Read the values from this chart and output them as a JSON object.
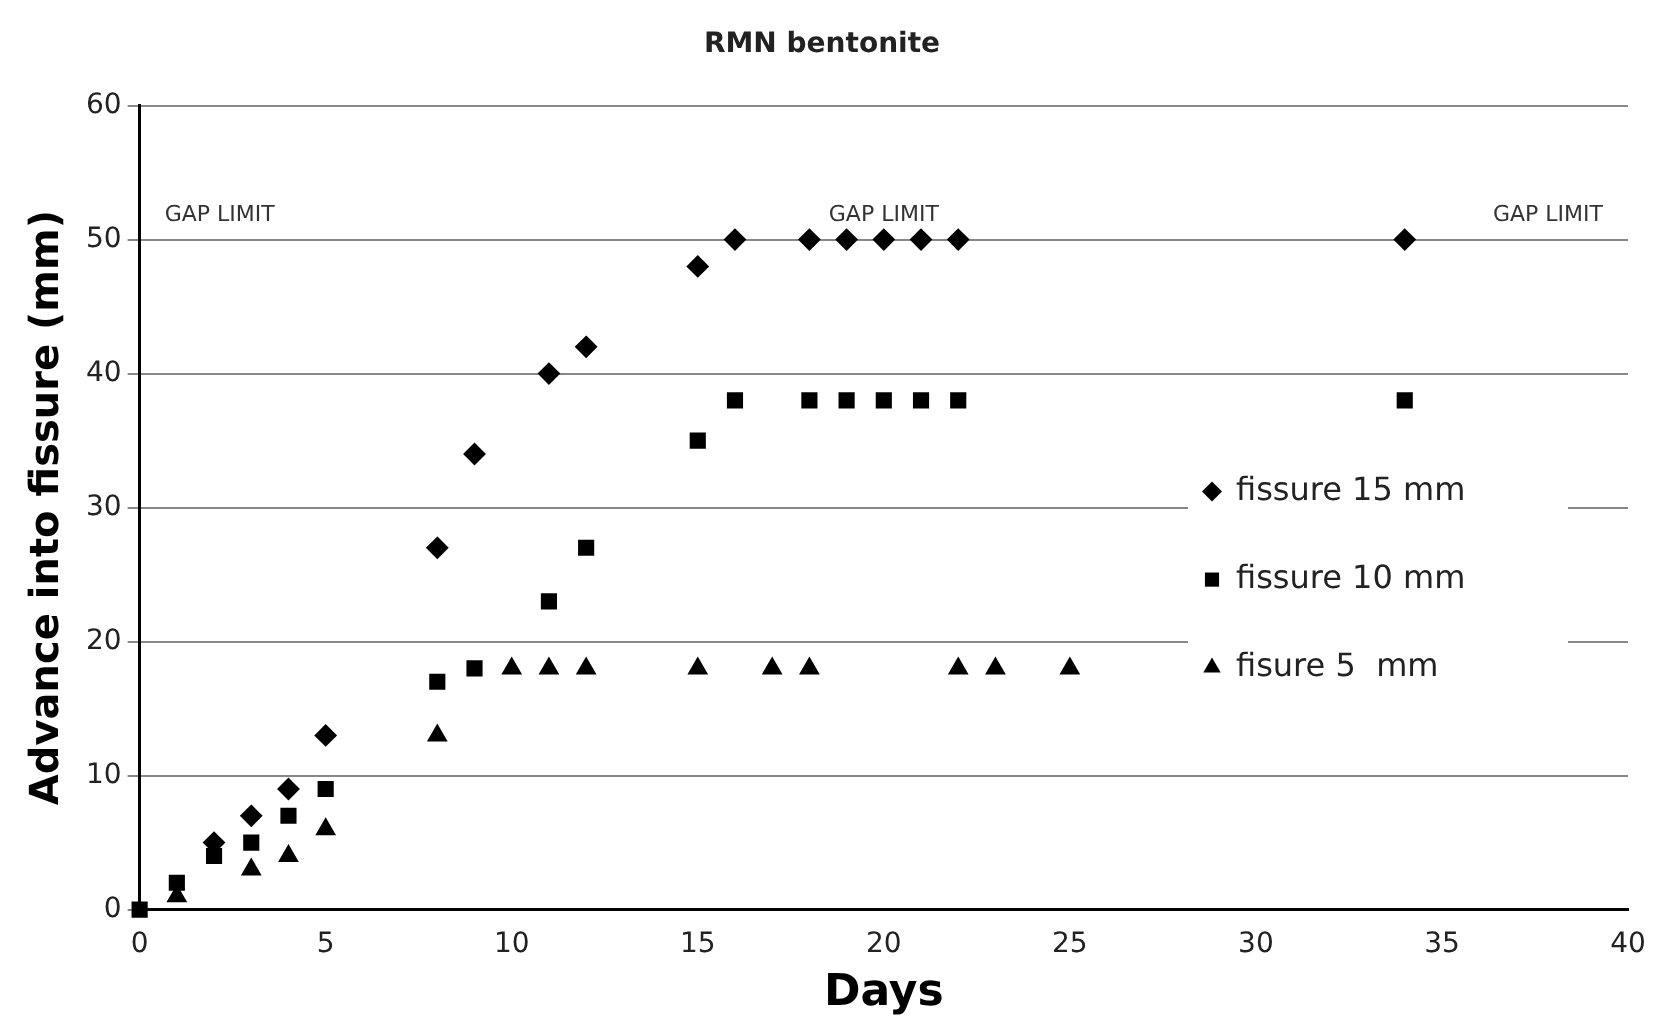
{
  "chart_data": {
    "type": "scatter",
    "title": "RMN bentonite",
    "xlabel": "Days",
    "ylabel": "Advance into fissure (mm)",
    "xlim": [
      0,
      40
    ],
    "xticks": [
      0,
      5,
      10,
      15,
      20,
      25,
      30,
      35,
      40
    ],
    "ylim": [
      0,
      60
    ],
    "yticks": [
      0,
      10,
      20,
      30,
      40,
      50,
      60
    ],
    "grid": "y",
    "legend": "right",
    "series": [
      {
        "name": "fissure 15 mm",
        "color": "#000000",
        "marker": "diamond",
        "x": [
          2,
          3,
          4,
          5,
          8,
          9,
          11,
          12,
          15,
          16,
          18,
          19,
          20,
          21,
          22,
          34
        ],
        "values": [
          5,
          7,
          9,
          13,
          27,
          34,
          40,
          42,
          48,
          50,
          50,
          50,
          50,
          50,
          50,
          50
        ]
      },
      {
        "name": "fissure 10 mm",
        "color": "#000000",
        "marker": "square",
        "x": [
          0,
          1,
          2,
          3,
          4,
          5,
          8,
          9,
          11,
          12,
          15,
          16,
          18,
          19,
          20,
          21,
          22,
          34
        ],
        "values": [
          0,
          2,
          4,
          5,
          7,
          9,
          17,
          18,
          23,
          27,
          35,
          38,
          38,
          38,
          38,
          38,
          38,
          38
        ]
      },
      {
        "name": "fisure 5  mm",
        "color": "#000000",
        "marker": "triangle",
        "x": [
          1,
          3,
          4,
          5,
          8,
          10,
          11,
          12,
          15,
          17,
          18,
          22,
          23,
          25
        ],
        "values": [
          1,
          3,
          4,
          6,
          13,
          18,
          18,
          18,
          18,
          18,
          18,
          18,
          18,
          18
        ]
      }
    ],
    "annotations": [
      "GAP LIMIT",
      "GAP LIMIT",
      "GAP LIMIT"
    ]
  }
}
